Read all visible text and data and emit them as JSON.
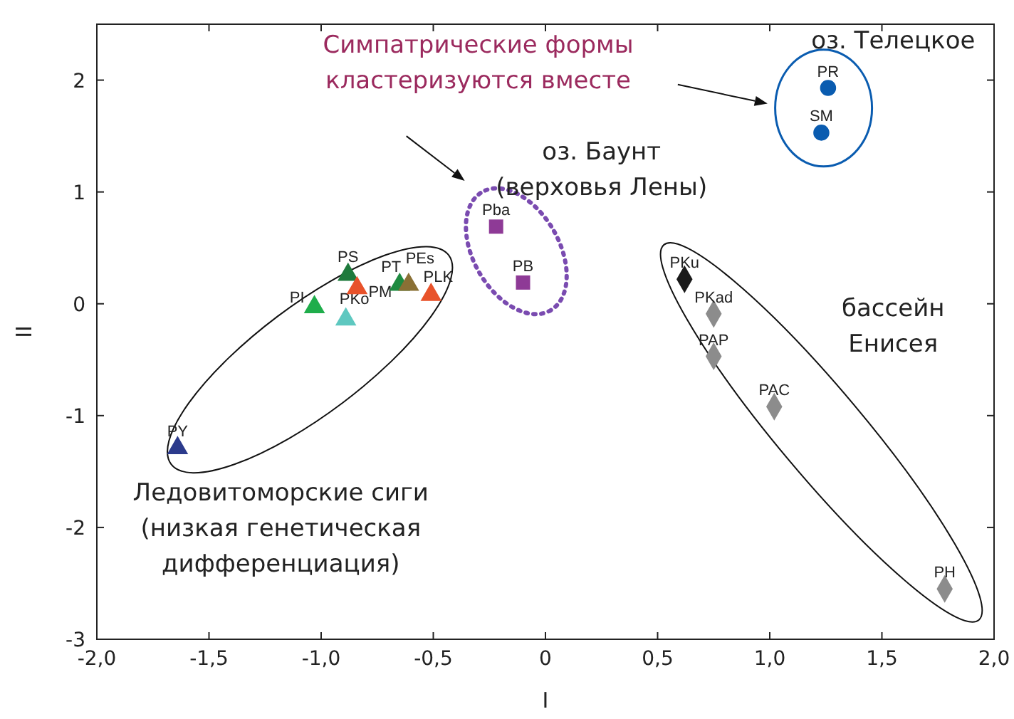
{
  "chart_data": {
    "type": "scatter",
    "xlabel": "I",
    "ylabel": "II",
    "xlim": [
      -2,
      2
    ],
    "ylim": [
      -3,
      2.5
    ],
    "xticks": [
      {
        "value": -2,
        "label": "-2,0"
      },
      {
        "value": -1.5,
        "label": "-1,5"
      },
      {
        "value": -1,
        "label": "-1,0"
      },
      {
        "value": -0.5,
        "label": "-0,5"
      },
      {
        "value": 0,
        "label": "0"
      },
      {
        "value": 0.5,
        "label": "0,5"
      },
      {
        "value": 1,
        "label": "1,0"
      },
      {
        "value": 1.5,
        "label": "1,5"
      },
      {
        "value": 2,
        "label": "2,0"
      }
    ],
    "yticks": [
      -3,
      -2,
      -1,
      0,
      1,
      2
    ],
    "grid": false,
    "series": [
      {
        "name": "PY",
        "color": "#2b3a8c",
        "marker": "triangle",
        "x": [
          -1.64
        ],
        "values": [
          -1.29
        ]
      },
      {
        "name": "PI",
        "color": "#1fad4b",
        "marker": "triangle",
        "x": [
          -1.03
        ],
        "values": [
          -0.03
        ]
      },
      {
        "name": "PKo",
        "color": "#5ec8c0",
        "marker": "triangle",
        "x": [
          -0.89
        ],
        "values": [
          -0.14
        ]
      },
      {
        "name": "PS",
        "color": "#1e7a3c",
        "marker": "triangle",
        "x": [
          -0.88
        ],
        "values": [
          0.26
        ]
      },
      {
        "name": "PM",
        "color": "#e8522a",
        "marker": "triangle",
        "x": [
          -0.84
        ],
        "values": [
          0.14
        ]
      },
      {
        "name": "PT",
        "color": "#1e8a40",
        "marker": "triangle",
        "x": [
          -0.65
        ],
        "values": [
          0.17
        ]
      },
      {
        "name": "PEs",
        "color": "#8a7035",
        "marker": "triangle",
        "x": [
          -0.61
        ],
        "values": [
          0.17
        ]
      },
      {
        "name": "PLK",
        "color": "#e8522a",
        "marker": "triangle",
        "x": [
          -0.51
        ],
        "values": [
          0.08
        ]
      },
      {
        "name": "Pba",
        "color": "#8e3a96",
        "marker": "square",
        "x": [
          -0.22
        ],
        "values": [
          0.69
        ]
      },
      {
        "name": "PB",
        "color": "#8e3a96",
        "marker": "square",
        "x": [
          -0.1
        ],
        "values": [
          0.19
        ]
      },
      {
        "name": "PKu",
        "color": "#1a1a1a",
        "marker": "diamond",
        "x": [
          0.62
        ],
        "values": [
          0.22
        ]
      },
      {
        "name": "PKad",
        "color": "#8c8c8c",
        "marker": "diamond",
        "x": [
          0.75
        ],
        "values": [
          -0.09
        ]
      },
      {
        "name": "PAP",
        "color": "#8c8c8c",
        "marker": "diamond",
        "x": [
          0.75
        ],
        "values": [
          -0.47
        ]
      },
      {
        "name": "PAC",
        "color": "#8c8c8c",
        "marker": "diamond",
        "x": [
          1.02
        ],
        "values": [
          -0.92
        ]
      },
      {
        "name": "PH",
        "color": "#8c8c8c",
        "marker": "diamond",
        "x": [
          1.78
        ],
        "values": [
          -2.55
        ]
      },
      {
        "name": "PR",
        "color": "#0a5cb0",
        "marker": "circle",
        "x": [
          1.26
        ],
        "values": [
          1.93
        ]
      },
      {
        "name": "SM",
        "color": "#0a5cb0",
        "marker": "circle",
        "x": [
          1.23
        ],
        "values": [
          1.53
        ]
      }
    ],
    "annotations": [
      "Симпатрические формы\nкластеризуются вместе",
      "оз. Телецкое",
      "оз. Баунт\n(верховья Лены)",
      "бассейн\nЕнисея",
      "Ледовитоморские сиги\n(низкая генетическая\nдифференциация)"
    ]
  }
}
